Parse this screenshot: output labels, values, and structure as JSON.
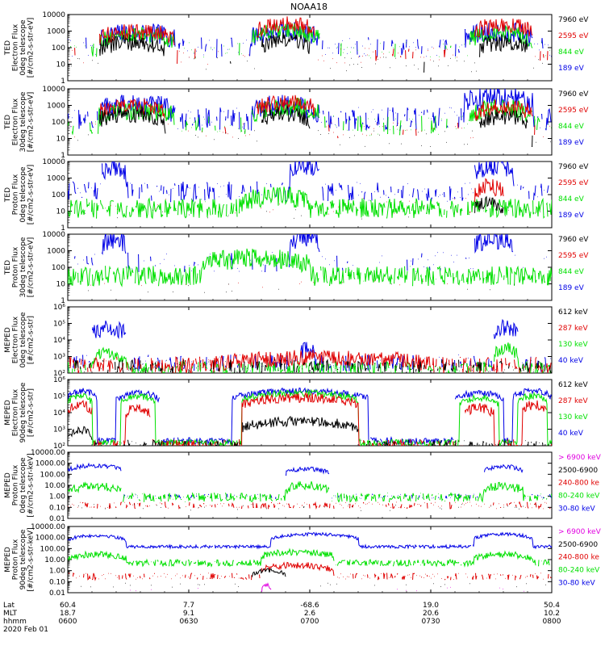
{
  "figure": {
    "title": "NOAA18",
    "date": "2020 Feb 01",
    "footer_labels": [
      "Lat",
      "MLT",
      "hhmm"
    ]
  },
  "colors": {
    "black": "#000000",
    "red": "#e00000",
    "green": "#00e000",
    "blue": "#0000e6",
    "magenta": "#e000e0",
    "axis": "#000000"
  },
  "chart_data": [
    {
      "type": "line",
      "ylabel_lines": [
        "TED",
        "Electron Flux",
        "0deg telescope",
        "[#/cm2-s-str-eV]"
      ],
      "yscale": "log",
      "ylim": [
        1,
        10000
      ],
      "yticks": [
        1,
        10,
        100,
        1000,
        10000
      ],
      "ytick_labels": [
        "1",
        "10",
        "100",
        "1000",
        "10000"
      ],
      "legend": [
        {
          "label": "7960 eV",
          "color": "black"
        },
        {
          "label": "2595 eV",
          "color": "red"
        },
        {
          "label": "844 eV",
          "color": "green"
        },
        {
          "label": "189 eV",
          "color": "blue"
        }
      ],
      "series": [
        {
          "color": "blue",
          "level": 100,
          "spread": 0.6,
          "density": 0.35,
          "bursts": [
            [
              6.5,
              22,
              800
            ],
            [
              38,
              52,
              1000
            ],
            [
              82,
              96,
              900
            ]
          ]
        },
        {
          "color": "green",
          "level": 70,
          "spread": 0.5,
          "density": 0.2,
          "bursts": [
            [
              6.5,
              22,
              600
            ],
            [
              38,
              52,
              1000
            ],
            [
              83,
              96,
              700
            ]
          ]
        },
        {
          "color": "red",
          "level": 30,
          "spread": 0.5,
          "density": 0.2,
          "bursts": [
            [
              6.5,
              22,
              900
            ],
            [
              39,
              51,
              2500
            ],
            [
              84,
              96,
              2200
            ]
          ]
        },
        {
          "color": "black",
          "level": 10,
          "spread": 0.5,
          "density": 0.1,
          "bursts": [
            [
              6.5,
              20,
              200
            ],
            [
              40,
              50,
              300
            ],
            [
              85,
              95,
              200
            ]
          ]
        }
      ]
    },
    {
      "type": "line",
      "ylabel_lines": [
        "TED",
        "Electron Flux",
        "30deg telescope",
        "[#/cm2-s-str-eV]"
      ],
      "yscale": "log",
      "ylim": [
        1,
        10000
      ],
      "yticks": [
        1,
        10,
        100,
        1000,
        10000
      ],
      "ytick_labels": [
        "1",
        "10",
        "100",
        "1000",
        "10000"
      ],
      "legend": [
        {
          "label": "7960 eV",
          "color": "black"
        },
        {
          "label": "2595 eV",
          "color": "red"
        },
        {
          "label": "844 eV",
          "color": "green"
        },
        {
          "label": "189 eV",
          "color": "blue"
        }
      ],
      "series": [
        {
          "color": "blue",
          "level": 150,
          "spread": 0.7,
          "density": 0.6,
          "bursts": [
            [
              6.5,
              22,
              1000
            ],
            [
              38,
              52,
              900
            ],
            [
              82,
              96,
              3000
            ]
          ]
        },
        {
          "color": "green",
          "level": 60,
          "spread": 0.6,
          "density": 0.35,
          "bursts": [
            [
              6.5,
              22,
              500
            ],
            [
              38,
              52,
              800
            ],
            [
              83,
              96,
              600
            ]
          ]
        },
        {
          "color": "red",
          "level": 30,
          "spread": 0.5,
          "density": 0.15,
          "bursts": [
            [
              6.5,
              20,
              900
            ],
            [
              39,
              51,
              1500
            ],
            [
              84,
              96,
              800
            ]
          ]
        },
        {
          "color": "black",
          "level": 10,
          "spread": 0.5,
          "density": 0.1,
          "bursts": [
            [
              6.5,
              20,
              300
            ],
            [
              40,
              50,
              300
            ],
            [
              85,
              95,
              200
            ]
          ]
        }
      ]
    },
    {
      "type": "line",
      "ylabel_lines": [
        "TED",
        "Proton Flux",
        "0deg telescope",
        "[#/cm2-s-str-eV]"
      ],
      "yscale": "log",
      "ylim": [
        1,
        10000
      ],
      "yticks": [
        1,
        10,
        100,
        1000,
        10000
      ],
      "ytick_labels": [
        "1",
        "10",
        "100",
        "1000",
        "10000"
      ],
      "legend": [
        {
          "label": "7960 eV",
          "color": "black"
        },
        {
          "label": "2595 eV",
          "color": "red"
        },
        {
          "label": "844 eV",
          "color": "green"
        },
        {
          "label": "189 eV",
          "color": "blue"
        }
      ],
      "series": [
        {
          "color": "blue",
          "level": 150,
          "spread": 0.6,
          "density": 0.55,
          "bursts": [
            [
              7,
              12,
              5000
            ],
            [
              46,
              52,
              6000
            ],
            [
              84,
              92,
              5000
            ]
          ]
        },
        {
          "color": "green",
          "level": 15,
          "spread": 0.6,
          "density": 0.9,
          "bursts": [
            [
              36,
              50,
              80
            ]
          ]
        },
        {
          "color": "red",
          "level": 20,
          "spread": 0.5,
          "density": 0.05,
          "bursts": [
            [
              84,
              90,
              300
            ]
          ]
        },
        {
          "color": "black",
          "level": 8,
          "spread": 0.4,
          "density": 0.04,
          "bursts": [
            [
              84,
              90,
              30
            ]
          ]
        }
      ]
    },
    {
      "type": "line",
      "ylabel_lines": [
        "TED",
        "Proton Flux",
        "30deg telescope",
        "[#/cm2-s-str-eV]"
      ],
      "yscale": "log",
      "ylim": [
        1,
        10000
      ],
      "yticks": [
        1,
        10,
        100,
        1000,
        10000
      ],
      "ytick_labels": [
        "1",
        "10",
        "100",
        "1000",
        "10000"
      ],
      "legend": [
        {
          "label": "7960 eV",
          "color": "black"
        },
        {
          "label": "2595 eV",
          "color": "red"
        },
        {
          "label": "844 eV",
          "color": "green"
        },
        {
          "label": "189 eV",
          "color": "blue"
        }
      ],
      "series": [
        {
          "color": "blue",
          "level": 200,
          "spread": 0.6,
          "density": 0.25,
          "bursts": [
            [
              7,
              12,
              5000
            ],
            [
              46,
              52,
              7000
            ],
            [
              84,
              92,
              5000
            ]
          ]
        },
        {
          "color": "green",
          "level": 30,
          "spread": 0.6,
          "density": 0.9,
          "bursts": [
            [
              28,
              50,
              350
            ]
          ]
        },
        {
          "color": "red",
          "level": 10,
          "spread": 0.3,
          "density": 0.02,
          "bursts": []
        },
        {
          "color": "black",
          "level": 5,
          "spread": 0.3,
          "density": 0.02,
          "bursts": []
        }
      ]
    },
    {
      "type": "line",
      "ylabel_lines": [
        "MEPED",
        "Electron Flux",
        "0deg telescope",
        "[#/cm2-s-str]"
      ],
      "yscale": "log",
      "ylim": [
        100,
        1000000
      ],
      "yticks": [
        100,
        1000,
        10000,
        100000,
        1000000
      ],
      "ytick_labels": [
        "10²",
        "10³",
        "10⁴",
        "10⁵",
        "10⁶"
      ],
      "legend": [
        {
          "label": "612 keV",
          "color": "black"
        },
        {
          "label": "287 keV",
          "color": "red"
        },
        {
          "label": "130 keV",
          "color": "green"
        },
        {
          "label": "40 keV",
          "color": "blue"
        }
      ],
      "series": [
        {
          "color": "blue",
          "level": 400,
          "spread": 0.5,
          "density": 0.5,
          "bursts": [
            [
              5,
              12,
              50000
            ],
            [
              48,
              51,
              3000
            ],
            [
              88,
              93,
              60000
            ]
          ]
        },
        {
          "color": "green",
          "level": 200,
          "spread": 0.4,
          "density": 0.7,
          "bursts": [
            [
              5,
              12,
              1500
            ],
            [
              88,
              93,
              3000
            ]
          ]
        },
        {
          "color": "red",
          "level": 300,
          "spread": 0.5,
          "density": 0.7,
          "bursts": [
            [
              30,
              75,
              800
            ]
          ]
        },
        {
          "color": "black",
          "level": 250,
          "spread": 0.4,
          "density": 0.5,
          "bursts": []
        }
      ]
    },
    {
      "type": "line",
      "ylabel_lines": [
        "MEPED",
        "Electron Flux",
        "90deg telescope",
        "[#/cm2-s-str]"
      ],
      "yscale": "log",
      "ylim": [
        100,
        1000000
      ],
      "yticks": [
        100,
        1000,
        10000,
        100000,
        1000000
      ],
      "ytick_labels": [
        "10²",
        "10³",
        "10⁴",
        "10⁵",
        "10⁶"
      ],
      "legend": [
        {
          "label": "612 keV",
          "color": "black"
        },
        {
          "label": "287 keV",
          "color": "red"
        },
        {
          "label": "130 keV",
          "color": "green"
        },
        {
          "label": "40 keV",
          "color": "blue"
        }
      ],
      "series": [
        {
          "color": "blue",
          "level": 200,
          "spread": 0.2,
          "density": 0.95,
          "bursts": [
            [
              0,
              6,
              200000
            ],
            [
              10,
              19,
              150000
            ],
            [
              34,
              62,
              200000
            ],
            [
              80,
              90,
              150000
            ],
            [
              92,
              100,
              200000
            ]
          ]
        },
        {
          "color": "green",
          "level": 150,
          "spread": 0.2,
          "density": 0.9,
          "bursts": [
            [
              0,
              5,
              100000
            ],
            [
              11,
              18,
              100000
            ],
            [
              36,
              60,
              150000
            ],
            [
              81,
              89,
              80000
            ],
            [
              93,
              99,
              100000
            ]
          ]
        },
        {
          "color": "red",
          "level": 120,
          "spread": 0.3,
          "density": 0.7,
          "bursts": [
            [
              0,
              5,
              30000
            ],
            [
              12,
              17,
              20000
            ],
            [
              36,
              60,
              80000
            ],
            [
              82,
              88,
              20000
            ],
            [
              94,
              99,
              30000
            ]
          ]
        },
        {
          "color": "black",
          "level": 110,
          "spread": 0.3,
          "density": 0.5,
          "bursts": [
            [
              0,
              5,
              1000
            ],
            [
              36,
              60,
              3000
            ]
          ]
        }
      ]
    },
    {
      "type": "line",
      "ylabel_lines": [
        "MEPED",
        "Proton Flux",
        "0deg telescope",
        "[#/cm2-s-str-keV]"
      ],
      "yscale": "log",
      "ylim": [
        0.01,
        10000
      ],
      "yticks": [
        0.01,
        0.1,
        1,
        10,
        100,
        1000,
        10000
      ],
      "ytick_labels": [
        "0.01",
        "0.10",
        "1.00",
        "10.00",
        "100.00",
        "1000.00",
        "10000.00"
      ],
      "legend": [
        {
          "label": "> 6900 keV",
          "color": "magenta"
        },
        {
          "label": "2500-6900",
          "color": "black"
        },
        {
          "label": "240-800 ke",
          "color": "red"
        },
        {
          "label": "80-240 keV",
          "color": "green"
        },
        {
          "label": "30-80 keV",
          "color": "blue"
        }
      ],
      "series": [
        {
          "color": "blue",
          "level": 1,
          "spread": 0.2,
          "density": 0.3,
          "bursts": [
            [
              0,
              11,
              600
            ],
            [
              45,
              54,
              300
            ],
            [
              86,
              94,
              500
            ]
          ]
        },
        {
          "color": "green",
          "level": 0.8,
          "spread": 0.4,
          "density": 0.8,
          "bursts": [
            [
              0,
              11,
              8
            ],
            [
              45,
              54,
              10
            ],
            [
              86,
              94,
              8
            ]
          ]
        },
        {
          "color": "red",
          "level": 0.15,
          "spread": 0.3,
          "density": 0.5,
          "bursts": []
        },
        {
          "color": "black",
          "level": 0.1,
          "spread": 0.3,
          "density": 0.05,
          "bursts": []
        }
      ]
    },
    {
      "type": "line",
      "ylabel_lines": [
        "MEPED",
        "Proton Flux",
        "90deg telescope",
        "[#/cm2-s-str-keV]"
      ],
      "yscale": "log",
      "ylim": [
        0.01,
        10000
      ],
      "yticks": [
        0.01,
        0.1,
        1,
        10,
        100,
        1000,
        10000
      ],
      "ytick_labels": [
        "0.01",
        "0.10",
        "1.00",
        "10.00",
        "100.00",
        "1000.00",
        "10000.00"
      ],
      "legend": [
        {
          "label": "> 6900 keV",
          "color": "magenta"
        },
        {
          "label": "2500-6900",
          "color": "black"
        },
        {
          "label": "240-800 ke",
          "color": "red"
        },
        {
          "label": "80-240 keV",
          "color": "green"
        },
        {
          "label": "30-80 keV",
          "color": "blue"
        }
      ],
      "series": [
        {
          "color": "blue",
          "level": 150,
          "spread": 0.15,
          "density": 0.98,
          "bursts": [
            [
              0,
              12,
              1500
            ],
            [
              42,
              60,
              2000
            ],
            [
              84,
              96,
              2000
            ]
          ]
        },
        {
          "color": "green",
          "level": 5,
          "spread": 0.3,
          "density": 0.9,
          "bursts": [
            [
              0,
              12,
              30
            ],
            [
              40,
              55,
              50
            ],
            [
              84,
              96,
              30
            ]
          ]
        },
        {
          "color": "red",
          "level": 0.3,
          "spread": 0.3,
          "density": 0.5,
          "bursts": [
            [
              40,
              55,
              3
            ]
          ]
        },
        {
          "color": "black",
          "level": 0.05,
          "spread": 0.2,
          "density": 0.05,
          "bursts": [
            [
              38,
              45,
              1
            ]
          ]
        },
        {
          "color": "magenta",
          "level": 0.02,
          "spread": 0.2,
          "density": 0.02,
          "bursts": [
            [
              40,
              42,
              0.05
            ]
          ]
        }
      ]
    }
  ],
  "xaxis": {
    "ticks": [
      0,
      25,
      50,
      75,
      100
    ],
    "rows": [
      [
        "60.4",
        "7.7",
        "-68.6",
        "19.0",
        "50.4"
      ],
      [
        "18.7",
        "9.1",
        "2.6",
        "20.6",
        "10.2"
      ],
      [
        "0600",
        "0630",
        "0700",
        "0730",
        "0800"
      ]
    ]
  }
}
